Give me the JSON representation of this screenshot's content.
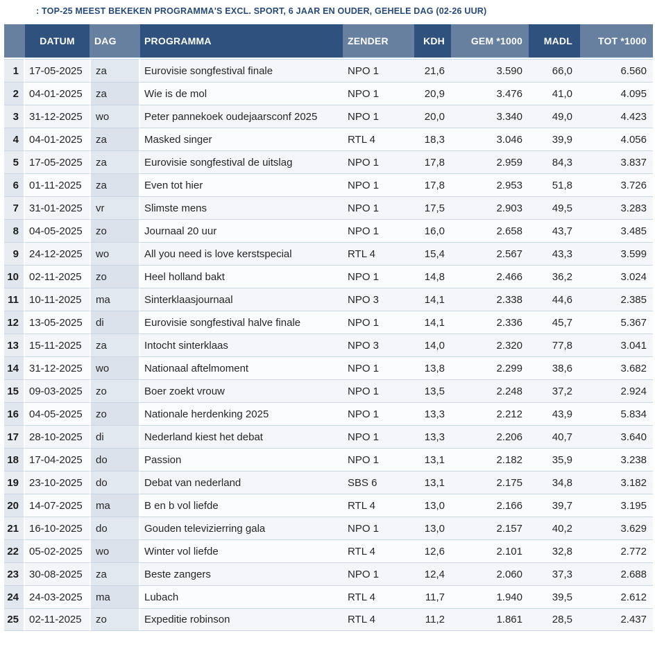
{
  "title": ": TOP-25 MEEST BEKEKEN PROGRAMMA'S EXCL. SPORT, 6 JAAR EN OUDER, GEHELE DAG (02-26 UUR)",
  "colors": {
    "header_dark": "#2e527d",
    "header_light": "#68809f",
    "title_text": "#25497b",
    "row_border": "#c9d5e2"
  },
  "chart_data": {
    "type": "table",
    "title": ": TOP-25 MEEST BEKEKEN PROGRAMMA'S EXCL. SPORT, 6 JAAR EN OUDER, GEHELE DAG (02-26 UUR)",
    "columns": [
      {
        "key": "rank",
        "label": ""
      },
      {
        "key": "datum",
        "label": "DATUM"
      },
      {
        "key": "dag",
        "label": "DAG"
      },
      {
        "key": "programma",
        "label": "PROGRAMMA"
      },
      {
        "key": "zender",
        "label": "ZENDER"
      },
      {
        "key": "kdh",
        "label": "KDH"
      },
      {
        "key": "gem",
        "label": "GEM *1000"
      },
      {
        "key": "madl",
        "label": "MADL"
      },
      {
        "key": "tot",
        "label": "TOT *1000"
      }
    ],
    "rows": [
      {
        "rank": "1",
        "datum": "17-05-2025",
        "dag": "za",
        "programma": "Eurovisie songfestival finale",
        "zender": "NPO 1",
        "kdh": "21,6",
        "gem": "3.590",
        "madl": "66,0",
        "tot": "6.560"
      },
      {
        "rank": "2",
        "datum": "04-01-2025",
        "dag": "za",
        "programma": "Wie is de mol",
        "zender": "NPO 1",
        "kdh": "20,9",
        "gem": "3.476",
        "madl": "41,0",
        "tot": "4.095"
      },
      {
        "rank": "3",
        "datum": "31-12-2025",
        "dag": "wo",
        "programma": "Peter pannekoek oudejaarsconf 2025",
        "zender": "NPO 1",
        "kdh": "20,0",
        "gem": "3.340",
        "madl": "49,0",
        "tot": "4.423"
      },
      {
        "rank": "4",
        "datum": "04-01-2025",
        "dag": "za",
        "programma": "Masked singer",
        "zender": "RTL 4",
        "kdh": "18,3",
        "gem": "3.046",
        "madl": "39,9",
        "tot": "4.056"
      },
      {
        "rank": "5",
        "datum": "17-05-2025",
        "dag": "za",
        "programma": "Eurovisie songfestival de uitslag",
        "zender": "NPO 1",
        "kdh": "17,8",
        "gem": "2.959",
        "madl": "84,3",
        "tot": "3.837"
      },
      {
        "rank": "6",
        "datum": "01-11-2025",
        "dag": "za",
        "programma": "Even tot hier",
        "zender": "NPO 1",
        "kdh": "17,8",
        "gem": "2.953",
        "madl": "51,8",
        "tot": "3.726"
      },
      {
        "rank": "7",
        "datum": "31-01-2025",
        "dag": "vr",
        "programma": "Slimste mens",
        "zender": "NPO 1",
        "kdh": "17,5",
        "gem": "2.903",
        "madl": "49,5",
        "tot": "3.283"
      },
      {
        "rank": "8",
        "datum": "04-05-2025",
        "dag": "zo",
        "programma": "Journaal 20 uur",
        "zender": "NPO 1",
        "kdh": "16,0",
        "gem": "2.658",
        "madl": "43,7",
        "tot": "3.485"
      },
      {
        "rank": "9",
        "datum": "24-12-2025",
        "dag": "wo",
        "programma": "All you need is love kerstspecial",
        "zender": "RTL 4",
        "kdh": "15,4",
        "gem": "2.567",
        "madl": "43,3",
        "tot": "3.599"
      },
      {
        "rank": "10",
        "datum": "02-11-2025",
        "dag": "zo",
        "programma": "Heel holland bakt",
        "zender": "NPO 1",
        "kdh": "14,8",
        "gem": "2.466",
        "madl": "36,2",
        "tot": "3.024"
      },
      {
        "rank": "11",
        "datum": "10-11-2025",
        "dag": "ma",
        "programma": "Sinterklaasjournaal",
        "zender": "NPO 3",
        "kdh": "14,1",
        "gem": "2.338",
        "madl": "44,6",
        "tot": "2.385"
      },
      {
        "rank": "12",
        "datum": "13-05-2025",
        "dag": "di",
        "programma": "Eurovisie songfestival halve finale",
        "zender": "NPO 1",
        "kdh": "14,1",
        "gem": "2.336",
        "madl": "45,7",
        "tot": "5.367"
      },
      {
        "rank": "13",
        "datum": "15-11-2025",
        "dag": "za",
        "programma": "Intocht sinterklaas",
        "zender": "NPO 3",
        "kdh": "14,0",
        "gem": "2.320",
        "madl": "77,8",
        "tot": "3.041"
      },
      {
        "rank": "14",
        "datum": "31-12-2025",
        "dag": "wo",
        "programma": "Nationaal aftelmoment",
        "zender": "NPO 1",
        "kdh": "13,8",
        "gem": "2.299",
        "madl": "38,6",
        "tot": "3.682"
      },
      {
        "rank": "15",
        "datum": "09-03-2025",
        "dag": "zo",
        "programma": "Boer zoekt vrouw",
        "zender": "NPO 1",
        "kdh": "13,5",
        "gem": "2.248",
        "madl": "37,2",
        "tot": "2.924"
      },
      {
        "rank": "16",
        "datum": "04-05-2025",
        "dag": "zo",
        "programma": "Nationale herdenking 2025",
        "zender": "NPO 1",
        "kdh": "13,3",
        "gem": "2.212",
        "madl": "43,9",
        "tot": "5.834"
      },
      {
        "rank": "17",
        "datum": "28-10-2025",
        "dag": "di",
        "programma": "Nederland kiest het debat",
        "zender": "NPO 1",
        "kdh": "13,3",
        "gem": "2.206",
        "madl": "40,7",
        "tot": "3.640"
      },
      {
        "rank": "18",
        "datum": "17-04-2025",
        "dag": "do",
        "programma": "Passion",
        "zender": "NPO 1",
        "kdh": "13,1",
        "gem": "2.182",
        "madl": "35,9",
        "tot": "3.238"
      },
      {
        "rank": "19",
        "datum": "23-10-2025",
        "dag": "do",
        "programma": "Debat van nederland",
        "zender": "SBS 6",
        "kdh": "13,1",
        "gem": "2.175",
        "madl": "34,8",
        "tot": "3.182"
      },
      {
        "rank": "20",
        "datum": "14-07-2025",
        "dag": "ma",
        "programma": "B en b vol liefde",
        "zender": "RTL 4",
        "kdh": "13,0",
        "gem": "2.166",
        "madl": "39,7",
        "tot": "3.195"
      },
      {
        "rank": "21",
        "datum": "16-10-2025",
        "dag": "do",
        "programma": "Gouden televizierring gala",
        "zender": "NPO 1",
        "kdh": "13,0",
        "gem": "2.157",
        "madl": "40,2",
        "tot": "3.629"
      },
      {
        "rank": "22",
        "datum": "05-02-2025",
        "dag": "wo",
        "programma": "Winter vol liefde",
        "zender": "RTL 4",
        "kdh": "12,6",
        "gem": "2.101",
        "madl": "32,8",
        "tot": "2.772"
      },
      {
        "rank": "23",
        "datum": "30-08-2025",
        "dag": "za",
        "programma": "Beste zangers",
        "zender": "NPO 1",
        "kdh": "12,4",
        "gem": "2.060",
        "madl": "37,3",
        "tot": "2.688"
      },
      {
        "rank": "24",
        "datum": "24-03-2025",
        "dag": "ma",
        "programma": "Lubach",
        "zender": "RTL 4",
        "kdh": "11,7",
        "gem": "1.940",
        "madl": "39,5",
        "tot": "2.612"
      },
      {
        "rank": "25",
        "datum": "02-11-2025",
        "dag": "zo",
        "programma": "Expeditie robinson",
        "zender": "RTL 4",
        "kdh": "11,2",
        "gem": "1.861",
        "madl": "28,5",
        "tot": "2.437"
      }
    ]
  }
}
